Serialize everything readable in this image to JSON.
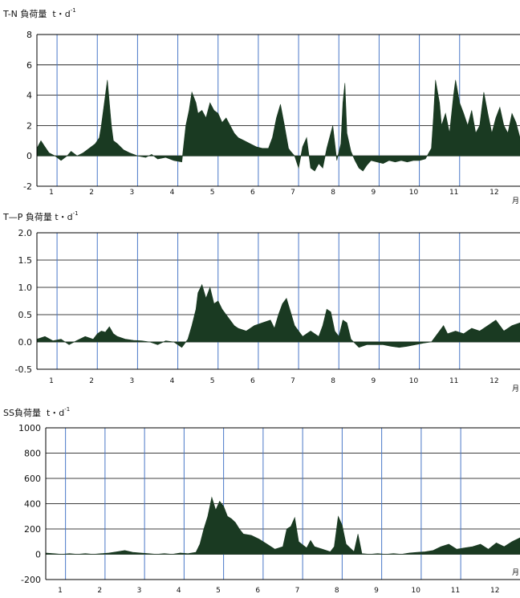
{
  "colors": {
    "fill": "#1a3a22",
    "grid_vertical": "#4a78c8",
    "grid_horizontal": "#000000"
  },
  "month_unit": "月",
  "chart_data": [
    {
      "type": "area",
      "title_main": "T-N 負荷量",
      "title_unit": "t・d",
      "title_exp": "-1",
      "x": [
        1,
        2,
        3,
        4,
        5,
        6,
        7,
        8,
        9,
        10,
        11,
        12
      ],
      "x_ticks": [
        "1",
        "2",
        "3",
        "4",
        "5",
        "6",
        "7",
        "8",
        "9",
        "10",
        "11",
        "12"
      ],
      "xlabel": "月",
      "ylim": [
        -2,
        8
      ],
      "yticks": [
        -2,
        0,
        2,
        4,
        6,
        8
      ],
      "ytick_labels": [
        "-2",
        "0",
        "2",
        "4",
        "6",
        "8"
      ],
      "grid": true,
      "series": [
        {
          "x": [
            1.0,
            1.1,
            1.2,
            1.3,
            1.45,
            1.6,
            1.75,
            1.85,
            2.0,
            2.15,
            2.3,
            2.45,
            2.55,
            2.6,
            2.65,
            2.7,
            2.75,
            2.8,
            2.85,
            2.9,
            3.0,
            3.15,
            3.3,
            3.5,
            3.7,
            3.85,
            4.0,
            4.2,
            4.4,
            4.6,
            4.65,
            4.7,
            4.78,
            4.85,
            4.95,
            5.0,
            5.1,
            5.2,
            5.3,
            5.4,
            5.5,
            5.6,
            5.7,
            5.8,
            5.9,
            6.0,
            6.15,
            6.3,
            6.45,
            6.6,
            6.75,
            6.85,
            6.95,
            7.05,
            7.15,
            7.25,
            7.3,
            7.4,
            7.5,
            7.6,
            7.7,
            7.8,
            7.9,
            8.0,
            8.1,
            8.2,
            8.3,
            8.35,
            8.45,
            8.55,
            8.6,
            8.65,
            8.7,
            8.8,
            8.9,
            9.0,
            9.1,
            9.2,
            9.3,
            9.45,
            9.6,
            9.75,
            9.9,
            10.05,
            10.2,
            10.35,
            10.5,
            10.65,
            10.8,
            10.85,
            10.9,
            11.0,
            11.05,
            11.15,
            11.25,
            11.35,
            11.4,
            11.5,
            11.6,
            11.7,
            11.8,
            11.9,
            12.0,
            12.1,
            12.2,
            12.3,
            12.4,
            12.5,
            12.6,
            12.7,
            12.8,
            12.9,
            13.0
          ],
          "values": [
            0.5,
            1.0,
            0.6,
            0.2,
            0.0,
            -0.3,
            0.0,
            0.3,
            0.0,
            0.2,
            0.5,
            0.8,
            1.2,
            2.0,
            3.0,
            4.0,
            5.0,
            3.5,
            2.0,
            1.0,
            0.8,
            0.4,
            0.2,
            0.0,
            -0.1,
            0.1,
            -0.2,
            -0.1,
            -0.3,
            -0.4,
            0.8,
            2.0,
            3.0,
            4.2,
            3.5,
            2.8,
            3.0,
            2.5,
            3.5,
            3.0,
            2.8,
            2.2,
            2.5,
            2.0,
            1.5,
            1.2,
            1.0,
            0.8,
            0.6,
            0.5,
            0.5,
            1.2,
            2.5,
            3.4,
            2.0,
            0.5,
            0.3,
            0.0,
            -0.8,
            0.6,
            1.2,
            -0.8,
            -1.0,
            -0.5,
            -0.8,
            0.5,
            1.5,
            2.0,
            -0.3,
            0.8,
            3.5,
            4.8,
            1.5,
            0.3,
            -0.3,
            -0.8,
            -1.0,
            -0.6,
            -0.3,
            -0.4,
            -0.5,
            -0.3,
            -0.4,
            -0.3,
            -0.4,
            -0.3,
            -0.3,
            -0.2,
            0.5,
            2.5,
            5.0,
            3.5,
            2.0,
            2.8,
            1.5,
            4.0,
            5.0,
            3.5,
            2.8,
            2.0,
            3.0,
            1.5,
            2.0,
            4.2,
            2.8,
            1.5,
            2.5,
            3.2,
            2.0,
            1.5,
            2.8,
            2.2,
            1.2
          ]
        }
      ]
    },
    {
      "type": "area",
      "title_main": "T—P 負荷量",
      "title_unit": "t・d",
      "title_exp": "-1",
      "x": [
        1,
        2,
        3,
        4,
        5,
        6,
        7,
        8,
        9,
        10,
        11,
        12
      ],
      "x_ticks": [
        "1",
        "2",
        "3",
        "4",
        "5",
        "6",
        "7",
        "8",
        "9",
        "10",
        "11",
        "12"
      ],
      "xlabel": "月",
      "ylim": [
        -0.5,
        2.0
      ],
      "yticks": [
        -0.5,
        0.0,
        0.5,
        1.0,
        1.5,
        2.0
      ],
      "ytick_labels": [
        "-0.5",
        "0.0",
        "0.5",
        "1.0",
        "1.5",
        "2.0"
      ],
      "grid": true,
      "series": [
        {
          "x": [
            1.0,
            1.2,
            1.4,
            1.6,
            1.8,
            2.0,
            2.2,
            2.4,
            2.5,
            2.6,
            2.7,
            2.8,
            2.9,
            3.0,
            3.2,
            3.4,
            3.6,
            3.8,
            4.0,
            4.2,
            4.4,
            4.6,
            4.75,
            4.85,
            4.95,
            5.0,
            5.1,
            5.2,
            5.3,
            5.4,
            5.5,
            5.6,
            5.7,
            5.8,
            5.9,
            6.0,
            6.2,
            6.4,
            6.6,
            6.8,
            6.9,
            7.0,
            7.1,
            7.2,
            7.3,
            7.4,
            7.6,
            7.8,
            8.0,
            8.1,
            8.2,
            8.3,
            8.4,
            8.5,
            8.6,
            8.7,
            8.8,
            9.0,
            9.2,
            9.4,
            9.6,
            9.8,
            10.0,
            10.2,
            10.4,
            10.6,
            10.8,
            11.0,
            11.1,
            11.2,
            11.4,
            11.6,
            11.8,
            12.0,
            12.2,
            12.4,
            12.6,
            12.8,
            13.0
          ],
          "values": [
            0.05,
            0.1,
            0.02,
            0.05,
            -0.05,
            0.03,
            0.1,
            0.05,
            0.15,
            0.2,
            0.18,
            0.28,
            0.15,
            0.1,
            0.05,
            0.03,
            0.02,
            0.0,
            -0.05,
            0.02,
            0.0,
            -0.1,
            0.05,
            0.3,
            0.6,
            0.9,
            1.05,
            0.8,
            1.0,
            0.7,
            0.75,
            0.6,
            0.5,
            0.4,
            0.3,
            0.25,
            0.2,
            0.3,
            0.35,
            0.4,
            0.25,
            0.5,
            0.7,
            0.8,
            0.55,
            0.3,
            0.1,
            0.2,
            0.1,
            0.3,
            0.6,
            0.55,
            0.2,
            0.1,
            0.4,
            0.35,
            0.05,
            -0.1,
            -0.05,
            -0.05,
            -0.05,
            -0.08,
            -0.1,
            -0.08,
            -0.05,
            -0.02,
            0.0,
            0.2,
            0.3,
            0.15,
            0.2,
            0.15,
            0.25,
            0.2,
            0.3,
            0.4,
            0.2,
            0.3,
            0.35
          ]
        }
      ]
    },
    {
      "type": "area",
      "title_main": "SS負荷量",
      "title_unit": "t・d",
      "title_exp": "-1",
      "x": [
        1,
        2,
        3,
        4,
        5,
        6,
        7,
        8,
        9,
        10,
        11,
        12
      ],
      "x_ticks": [
        "1",
        "2",
        "3",
        "4",
        "5",
        "6",
        "7",
        "8",
        "9",
        "10",
        "11",
        "12"
      ],
      "xlabel": "月",
      "ylim": [
        -200,
        1000
      ],
      "yticks": [
        -200,
        0,
        200,
        400,
        600,
        800,
        1000
      ],
      "ytick_labels": [
        "-200",
        "0",
        "200",
        "400",
        "600",
        "800",
        "1000"
      ],
      "grid": true,
      "series": [
        {
          "x": [
            1.0,
            1.2,
            1.4,
            1.6,
            1.8,
            2.0,
            2.2,
            2.4,
            2.6,
            2.8,
            3.0,
            3.2,
            3.4,
            3.6,
            3.8,
            4.0,
            4.2,
            4.4,
            4.6,
            4.8,
            4.9,
            5.0,
            5.1,
            5.2,
            5.3,
            5.4,
            5.5,
            5.6,
            5.7,
            5.8,
            5.9,
            6.0,
            6.2,
            6.4,
            6.6,
            6.8,
            7.0,
            7.1,
            7.2,
            7.3,
            7.4,
            7.6,
            7.7,
            7.8,
            8.0,
            8.2,
            8.3,
            8.4,
            8.5,
            8.6,
            8.8,
            8.9,
            9.0,
            9.2,
            9.4,
            9.6,
            9.8,
            10.0,
            10.2,
            10.4,
            10.6,
            10.8,
            11.0,
            11.2,
            11.4,
            11.6,
            11.8,
            12.0,
            12.2,
            12.4,
            12.6,
            12.8,
            13.0
          ],
          "values": [
            10,
            5,
            0,
            5,
            0,
            5,
            0,
            5,
            10,
            20,
            30,
            15,
            10,
            5,
            0,
            5,
            0,
            10,
            5,
            15,
            80,
            200,
            300,
            450,
            350,
            420,
            380,
            300,
            280,
            250,
            200,
            160,
            150,
            120,
            80,
            40,
            60,
            200,
            220,
            290,
            100,
            50,
            110,
            60,
            40,
            20,
            60,
            300,
            230,
            80,
            20,
            160,
            5,
            0,
            5,
            0,
            5,
            0,
            10,
            15,
            20,
            30,
            60,
            80,
            40,
            50,
            60,
            80,
            40,
            90,
            60,
            100,
            130
          ]
        }
      ]
    }
  ]
}
